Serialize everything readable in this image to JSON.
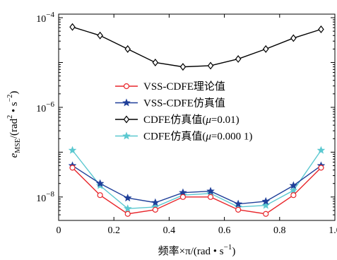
{
  "chart_data": {
    "type": "line",
    "title": "",
    "xlabel": "频率×π/(rad • s⁻¹)",
    "ylabel": "e_MSE/(rad² • s⁻²)",
    "ylabel_parts": {
      "var": "e",
      "sub": "MSE",
      "pre": "/(rad",
      "sup1": "2",
      "mid": " • s",
      "sup2": "−2",
      "post": ")"
    },
    "xlabel_parts": {
      "pre": "频率×π/(rad • s",
      "sup": "−1",
      "post": ")"
    },
    "x_ticks": [
      0,
      0.2,
      0.4,
      0.6,
      0.8,
      1.0
    ],
    "x_tick_labels": [
      "0",
      "0.2",
      "0.4",
      "0.6",
      "0.8",
      "1.0"
    ],
    "y_ticks": [
      {
        "base": "10",
        "exp": "−4",
        "value": 0.0001
      },
      {
        "base": "10",
        "exp": "−6",
        "value": 1e-06
      },
      {
        "base": "10",
        "exp": "−8",
        "value": 1e-08
      }
    ],
    "xlim": [
      0,
      1.0
    ],
    "ylim": [
      3e-09,
      0.00012
    ],
    "yscale": "log",
    "grid": false,
    "legend_position": "center",
    "x": [
      0.05,
      0.15,
      0.25,
      0.35,
      0.45,
      0.55,
      0.65,
      0.75,
      0.85,
      0.95
    ],
    "series": [
      {
        "name": "VSS-CDFE理论值",
        "color": "#e8262b",
        "marker": "circle",
        "values": [
          4.5e-08,
          1.1e-08,
          4.2e-09,
          5.2e-09,
          1e-08,
          1e-08,
          5.2e-09,
          4.2e-09,
          1.1e-08,
          4.5e-08
        ]
      },
      {
        "name": "VSS-CDFE仿真值",
        "color": "#1f3f99",
        "marker": "star",
        "values": [
          5e-08,
          2e-08,
          9.5e-09,
          7.5e-09,
          1.25e-08,
          1.35e-08,
          7e-09,
          8e-09,
          1.8e-08,
          5e-08
        ]
      },
      {
        "name": "CDFE仿真值(μ=0.01)",
        "name_parts": {
          "pre": "CDFE仿真值(",
          "mu": "μ",
          "post": "=0.01)"
        },
        "color": "#000000",
        "marker": "diamond",
        "values": [
          6.2e-05,
          4e-05,
          2e-05,
          1e-05,
          8e-06,
          8.5e-06,
          1.2e-05,
          2e-05,
          3.5e-05,
          5.5e-05
        ]
      },
      {
        "name": "CDFE仿真值(μ=0.000 1)",
        "name_parts": {
          "pre": "CDFE仿真值(",
          "mu": "μ",
          "post": "=0.000 1)"
        },
        "color": "#5bc8d0",
        "marker": "star",
        "values": [
          1.1e-07,
          1.8e-08,
          5.5e-09,
          6e-09,
          1.1e-08,
          1.2e-08,
          6e-09,
          6.5e-09,
          1.4e-08,
          1.1e-07
        ]
      }
    ]
  }
}
